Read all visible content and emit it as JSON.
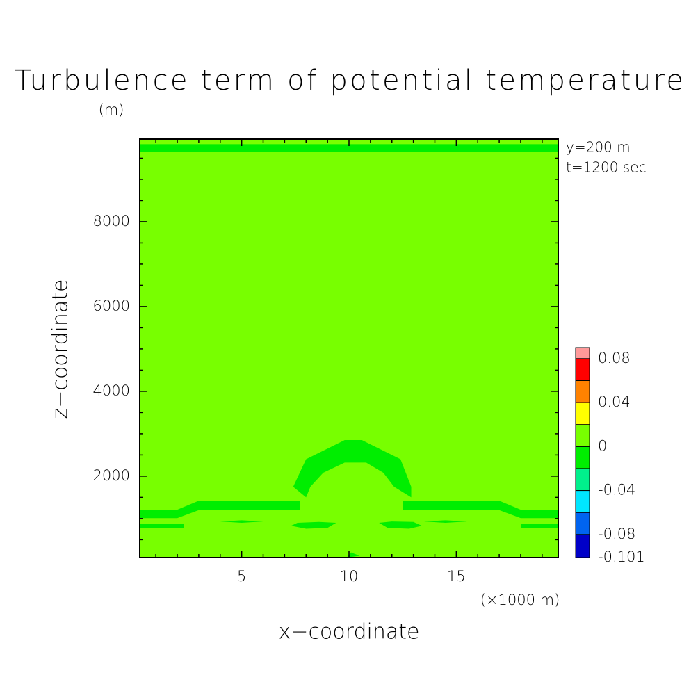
{
  "chart_data": {
    "type": "contour",
    "title": "Turbulence term of potential temperature",
    "annotations": [
      "y=200 m",
      "t=1200 sec"
    ],
    "x_label": "x−coordinate",
    "x_unit": "(×1000 m)",
    "y_label": "z−coordinate",
    "y_unit": "(m)",
    "xlim": [
      0.25,
      19.75
    ],
    "ylim": [
      80,
      9950
    ],
    "xticks": [
      5,
      10,
      15
    ],
    "yticks": [
      2000,
      4000,
      6000,
      8000
    ],
    "xminorticks": [
      1,
      2,
      3,
      4,
      6,
      7,
      8,
      9,
      11,
      12,
      13,
      14,
      16,
      17,
      18,
      19
    ],
    "yminorticks": [
      500,
      1000,
      1500,
      2500,
      3000,
      3500,
      4500,
      5000,
      5500,
      6500,
      7000,
      7500,
      8500,
      9000,
      9500
    ],
    "levels": [
      -0.101,
      -0.08,
      -0.06,
      -0.04,
      -0.02,
      0,
      0.02,
      0.04,
      0.06,
      0.08,
      0.09
    ],
    "colors": [
      "#0000c8",
      "#0064f0",
      "#00e6ff",
      "#00f08c",
      "#00ee00",
      "#78ff00",
      "#ffff00",
      "#ff8200",
      "#ff0000",
      "#ff9a9a"
    ],
    "colorbar_ticks": [
      -0.101,
      -0.08,
      -0.04,
      0,
      0.04,
      0.08
    ],
    "background_value": 0.01,
    "regions": [
      {
        "value": -0.01,
        "points": [
          [
            0.25,
            9640
          ],
          [
            19.75,
            9640
          ],
          [
            19.75,
            9830
          ],
          [
            0.25,
            9830
          ]
        ]
      },
      {
        "value": -0.01,
        "points": [
          [
            7.4,
            1750
          ],
          [
            8.0,
            2400
          ],
          [
            9.0,
            2650
          ],
          [
            9.8,
            2850
          ],
          [
            10.6,
            2850
          ],
          [
            11.4,
            2650
          ],
          [
            12.4,
            2400
          ],
          [
            12.9,
            1750
          ],
          [
            12.9,
            1500
          ],
          [
            12.1,
            1750
          ],
          [
            11.6,
            2080
          ],
          [
            10.8,
            2320
          ],
          [
            9.8,
            2320
          ],
          [
            8.8,
            2080
          ],
          [
            8.2,
            1750
          ],
          [
            8.0,
            1500
          ]
        ]
      },
      {
        "value": -0.01,
        "points": [
          [
            9.2,
            2460
          ],
          [
            9.7,
            2560
          ],
          [
            10.4,
            2580
          ],
          [
            11.0,
            2460
          ],
          [
            10.4,
            2500
          ],
          [
            9.7,
            2500
          ]
        ]
      },
      {
        "value": -0.01,
        "points": [
          [
            0.25,
            1010
          ],
          [
            2.0,
            1010
          ],
          [
            3.0,
            1200
          ],
          [
            7.7,
            1200
          ],
          [
            7.7,
            1420
          ],
          [
            3.0,
            1420
          ],
          [
            2.0,
            1210
          ],
          [
            0.25,
            1210
          ]
        ]
      },
      {
        "value": -0.01,
        "points": [
          [
            12.5,
            1200
          ],
          [
            17.0,
            1200
          ],
          [
            18.0,
            1010
          ],
          [
            19.75,
            1010
          ],
          [
            19.75,
            1210
          ],
          [
            18.0,
            1210
          ],
          [
            17.0,
            1420
          ],
          [
            12.5,
            1420
          ]
        ]
      },
      {
        "value": -0.01,
        "points": [
          [
            0.25,
            770
          ],
          [
            2.3,
            770
          ],
          [
            2.3,
            880
          ],
          [
            0.25,
            880
          ]
        ]
      },
      {
        "value": -0.01,
        "points": [
          [
            18.0,
            770
          ],
          [
            19.75,
            770
          ],
          [
            19.75,
            880
          ],
          [
            18.0,
            880
          ]
        ]
      },
      {
        "value": -0.01,
        "points": [
          [
            4.0,
            930
          ],
          [
            5.0,
            900
          ],
          [
            6.0,
            930
          ],
          [
            5.0,
            960
          ]
        ]
      },
      {
        "value": -0.01,
        "points": [
          [
            7.3,
            830
          ],
          [
            8.0,
            760
          ],
          [
            9.0,
            780
          ],
          [
            9.4,
            900
          ],
          [
            8.6,
            920
          ],
          [
            7.6,
            900
          ]
        ]
      },
      {
        "value": -0.01,
        "points": [
          [
            11.4,
            900
          ],
          [
            11.8,
            780
          ],
          [
            12.8,
            760
          ],
          [
            13.4,
            830
          ],
          [
            13.0,
            920
          ],
          [
            12.0,
            930
          ]
        ]
      },
      {
        "value": -0.01,
        "points": [
          [
            13.5,
            930
          ],
          [
            14.5,
            900
          ],
          [
            15.5,
            930
          ],
          [
            14.5,
            960
          ]
        ]
      },
      {
        "value": -0.01,
        "points": [
          [
            9.9,
            80
          ],
          [
            10.1,
            200
          ],
          [
            10.5,
            120
          ]
        ]
      }
    ]
  }
}
